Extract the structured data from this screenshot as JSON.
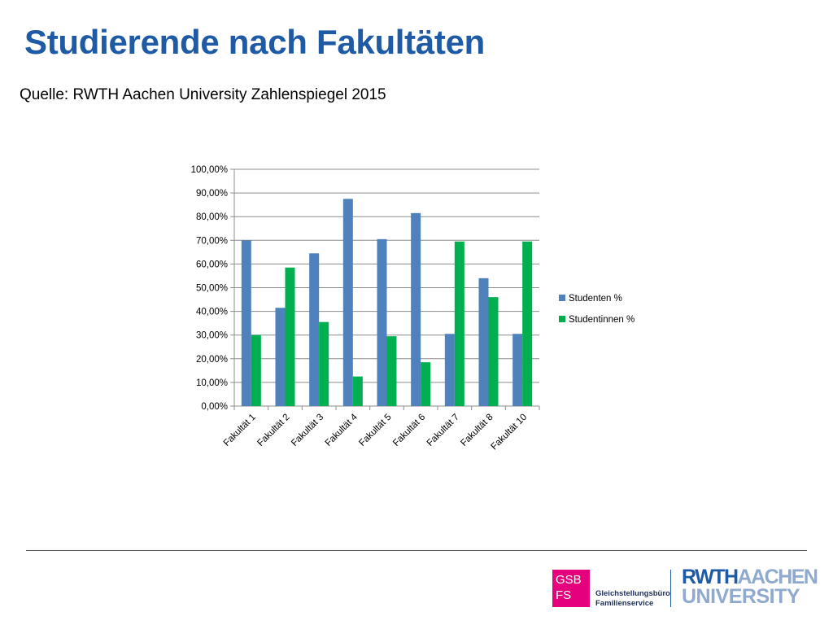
{
  "slide": {
    "title": "Studierende nach Fakultäten",
    "source": "Quelle: RWTH Aachen University Zahlenspiegel 2015"
  },
  "footer": {
    "gsb_logo": {
      "line1": "GSB",
      "line2": "FS"
    },
    "gsb_name": {
      "line1": "Gleichstellungsbüro",
      "line2": "Familienservice"
    },
    "rwth_logo": {
      "bold": "RWTH",
      "light": "AACHEN",
      "line2": "UNIVERSITY"
    }
  },
  "colors": {
    "title": "#1f5aa5",
    "series_studenten": "#4f81bd",
    "series_studentinnen": "#00b050",
    "gsb_magenta": "#e5007e"
  },
  "chart_data": {
    "type": "bar",
    "title": "",
    "xlabel": "",
    "ylabel": "",
    "categories": [
      "Fakultät 1",
      "Fakultät 2",
      "Fakultät 3",
      "Fakultät 4",
      "Fakultät 5",
      "Fakultät 6",
      "Fakultät 7",
      "Fakultät 8",
      "Fakultät 10"
    ],
    "series": [
      {
        "name": "Studenten %",
        "color": "#4f81bd",
        "values": [
          70.0,
          41.5,
          64.5,
          87.5,
          70.5,
          81.5,
          30.5,
          54.0,
          30.5
        ]
      },
      {
        "name": "Studentinnen %",
        "color": "#00b050",
        "values": [
          30.0,
          58.5,
          35.5,
          12.5,
          29.5,
          18.5,
          69.5,
          46.0,
          69.5
        ]
      }
    ],
    "ylim": [
      0,
      100
    ],
    "y_ticks": [
      "0,00%",
      "10,00%",
      "20,00%",
      "30,00%",
      "40,00%",
      "50,00%",
      "60,00%",
      "70,00%",
      "80,00%",
      "90,00%",
      "100,00%"
    ],
    "grid": true,
    "legend_position": "right"
  }
}
